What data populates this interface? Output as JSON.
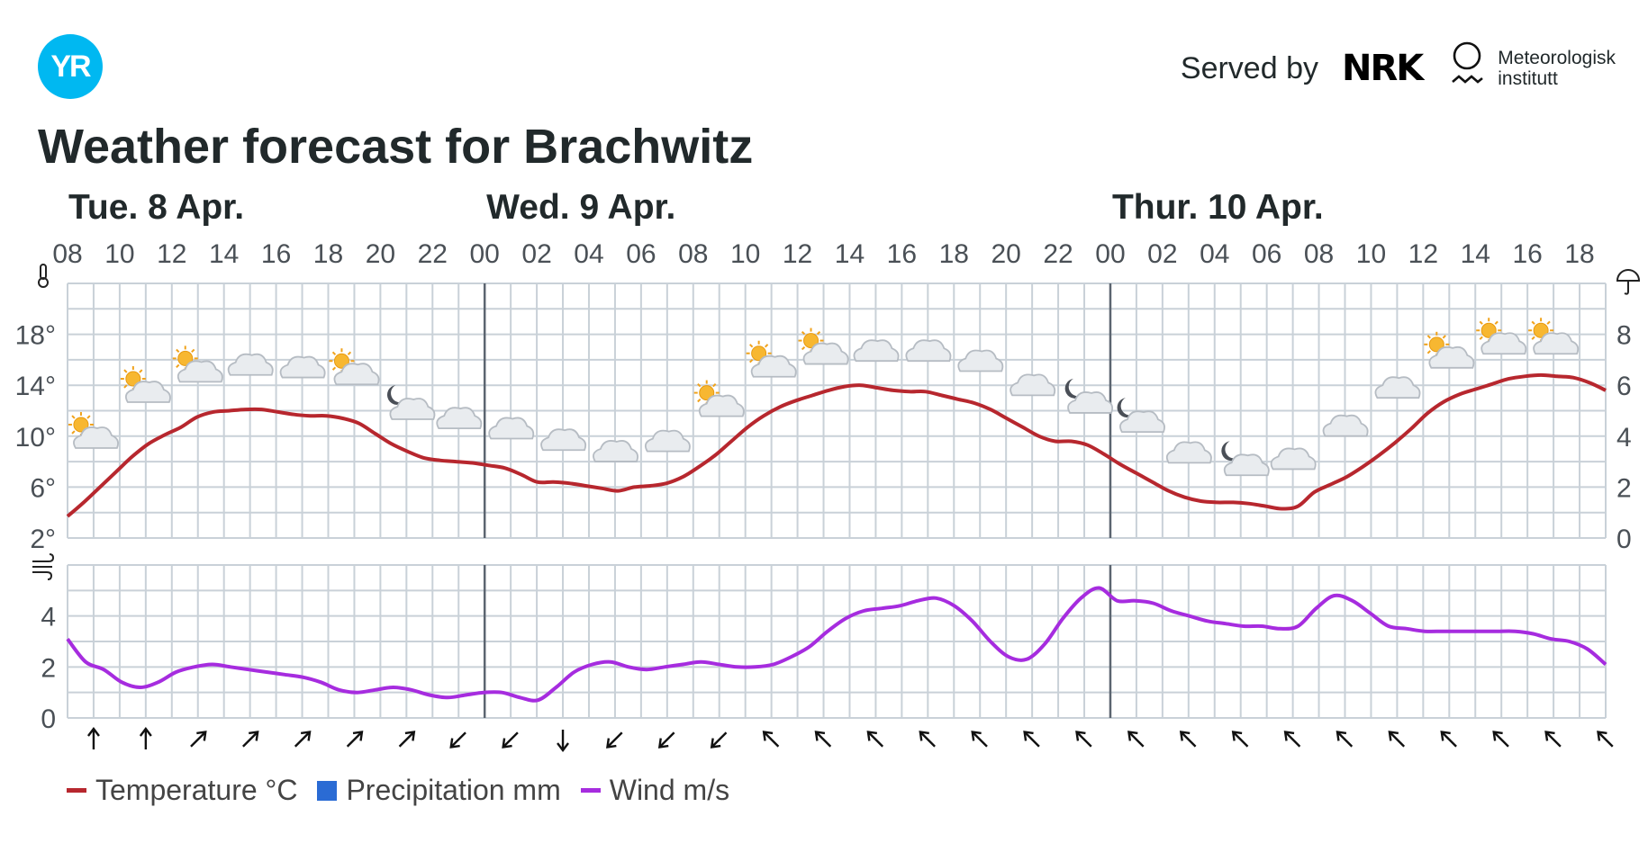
{
  "header": {
    "logo_text": "YR",
    "served_by": "Served by",
    "nrk_text": "NRK",
    "met_text": "Meteorologisk\ninstitutt"
  },
  "title": "Weather forecast for Brachwitz",
  "colors": {
    "temperature": "#b7272e",
    "wind": "#a62cdf",
    "precipitation": "#2a6bd4",
    "grid": "#c9d1d8",
    "day_divider": "#5c6570",
    "logo": "#00b8f1"
  },
  "legend": [
    {
      "label": "Temperature °C",
      "color": "#b7272e",
      "type": "line"
    },
    {
      "label": "Precipitation mm",
      "color": "#2a6bd4",
      "type": "box"
    },
    {
      "label": "Wind m/s",
      "color": "#a62cdf",
      "type": "line"
    }
  ],
  "chart_data": {
    "type": "line",
    "days": [
      {
        "label": "Tue. 8 Apr.",
        "start_hour": 0
      },
      {
        "label": "Wed. 9 Apr.",
        "start_hour": 16
      },
      {
        "label": "Thur. 10 Apr.",
        "start_hour": 40
      }
    ],
    "hour_labels": [
      "08",
      "10",
      "12",
      "14",
      "16",
      "18",
      "20",
      "22",
      "00",
      "02",
      "04",
      "06",
      "08",
      "10",
      "12",
      "14",
      "16",
      "18",
      "20",
      "22",
      "00",
      "02",
      "04",
      "06",
      "08",
      "10",
      "12",
      "14",
      "16",
      "18"
    ],
    "hours_covered": 59,
    "temperature": {
      "name": "Temperature °C",
      "yticks": [
        "18°",
        "14°",
        "10°",
        "6°",
        "2°"
      ],
      "ylim": [
        2,
        22
      ],
      "values": [
        3.7,
        4.8,
        6.0,
        7.2,
        8.4,
        9.4,
        10.1,
        10.7,
        11.5,
        11.9,
        12.0,
        12.1,
        12.1,
        11.9,
        11.7,
        11.6,
        11.6,
        11.4,
        11.0,
        10.2,
        9.4,
        8.8,
        8.3,
        8.1,
        8.0,
        7.9,
        7.7,
        7.5,
        7.0,
        6.4,
        6.4,
        6.3,
        6.1,
        5.9,
        5.7,
        6.0,
        6.1,
        6.3,
        6.8,
        7.6,
        8.5,
        9.6,
        10.7,
        11.6,
        12.3,
        12.8,
        13.2,
        13.6,
        13.9,
        14.0,
        13.8,
        13.6,
        13.5,
        13.5,
        13.2,
        12.9,
        12.6,
        12.1,
        11.4,
        10.7,
        10.0,
        9.6,
        9.6,
        9.3,
        8.6,
        7.8,
        7.1,
        6.4,
        5.7,
        5.2,
        4.9,
        4.8,
        4.8,
        4.7,
        4.5,
        4.3,
        4.5,
        5.6,
        6.2,
        6.8,
        7.6,
        8.5,
        9.5,
        10.6,
        11.8,
        12.7,
        13.3,
        13.7,
        14.1,
        14.5,
        14.7,
        14.8,
        14.7,
        14.6,
        14.2,
        13.6
      ]
    },
    "precipitation": {
      "name": "Precipitation mm",
      "yticks": [
        "8",
        "6",
        "4",
        "2",
        "0"
      ],
      "ylim": [
        0,
        10
      ],
      "values": []
    },
    "wind": {
      "name": "Wind m/s",
      "yticks": [
        "4",
        "2",
        "0"
      ],
      "ylim": [
        0,
        6
      ],
      "values": [
        3.1,
        2.2,
        1.9,
        1.4,
        1.2,
        1.4,
        1.8,
        2.0,
        2.1,
        2.0,
        1.9,
        1.8,
        1.7,
        1.6,
        1.4,
        1.1,
        1.0,
        1.1,
        1.2,
        1.1,
        0.9,
        0.8,
        0.9,
        1.0,
        1.0,
        0.8,
        0.7,
        1.2,
        1.8,
        2.1,
        2.2,
        2.0,
        1.9,
        2.0,
        2.1,
        2.2,
        2.1,
        2.0,
        2.0,
        2.1,
        2.4,
        2.8,
        3.4,
        3.9,
        4.2,
        4.3,
        4.4,
        4.6,
        4.7,
        4.4,
        3.8,
        3.0,
        2.4,
        2.3,
        2.9,
        3.9,
        4.7,
        5.1,
        4.6,
        4.6,
        4.5,
        4.2,
        4.0,
        3.8,
        3.7,
        3.6,
        3.6,
        3.5,
        3.6,
        4.3,
        4.8,
        4.6,
        4.1,
        3.6,
        3.5,
        3.4,
        3.4,
        3.4,
        3.4,
        3.4,
        3.4,
        3.3,
        3.1,
        3.0,
        2.7,
        2.1
      ]
    },
    "wind_directions": [
      "S",
      "S",
      "SW",
      "SW",
      "SW",
      "SW",
      "SW",
      "NE",
      "NE",
      "N",
      "NE",
      "NE",
      "NE",
      "SE",
      "SE",
      "SE",
      "SE",
      "SE",
      "SE",
      "SE",
      "SE",
      "SE",
      "SE",
      "SE",
      "SE",
      "SE",
      "SE",
      "SE",
      "SE",
      "SE"
    ],
    "weather_icons": [
      {
        "hour": 1,
        "symbol": "partly-cloudy-day",
        "temp_level": 10.2
      },
      {
        "hour": 3,
        "symbol": "partly-cloudy-day",
        "temp_level": 13.8
      },
      {
        "hour": 5,
        "symbol": "partly-cloudy-day",
        "temp_level": 15.4
      },
      {
        "hour": 7,
        "symbol": "cloudy",
        "temp_level": 15.8
      },
      {
        "hour": 9,
        "symbol": "cloudy",
        "temp_level": 15.6
      },
      {
        "hour": 11,
        "symbol": "partly-cloudy-day",
        "temp_level": 15.2
      },
      {
        "hour": 13,
        "symbol": "partly-cloudy-night",
        "temp_level": 12.6
      },
      {
        "hour": 15,
        "symbol": "cloudy",
        "temp_level": 11.6
      },
      {
        "hour": 17,
        "symbol": "cloudy",
        "temp_level": 10.8
      },
      {
        "hour": 19,
        "symbol": "cloudy",
        "temp_level": 9.9
      },
      {
        "hour": 21,
        "symbol": "cloudy",
        "temp_level": 9.0
      },
      {
        "hour": 23,
        "symbol": "cloudy",
        "temp_level": 9.8
      },
      {
        "hour": 25,
        "symbol": "partly-cloudy-day",
        "temp_level": 12.7
      },
      {
        "hour": 27,
        "symbol": "partly-cloudy-day",
        "temp_level": 15.8
      },
      {
        "hour": 29,
        "symbol": "partly-cloudy-day",
        "temp_level": 16.8
      },
      {
        "hour": 31,
        "symbol": "cloudy",
        "temp_level": 16.9
      },
      {
        "hour": 33,
        "symbol": "cloudy",
        "temp_level": 16.9
      },
      {
        "hour": 35,
        "symbol": "cloudy",
        "temp_level": 16.1
      },
      {
        "hour": 37,
        "symbol": "cloudy",
        "temp_level": 14.2
      },
      {
        "hour": 39,
        "symbol": "partly-cloudy-night",
        "temp_level": 13.1
      },
      {
        "hour": 41,
        "symbol": "partly-cloudy-night",
        "temp_level": 11.6
      },
      {
        "hour": 43,
        "symbol": "cloudy",
        "temp_level": 8.9
      },
      {
        "hour": 45,
        "symbol": "partly-cloudy-night",
        "temp_level": 8.2
      },
      {
        "hour": 47,
        "symbol": "cloudy",
        "temp_level": 8.4
      },
      {
        "hour": 49,
        "symbol": "cloudy",
        "temp_level": 11.0
      },
      {
        "hour": 51,
        "symbol": "cloudy",
        "temp_level": 14.0
      },
      {
        "hour": 53,
        "symbol": "partly-cloudy-day",
        "temp_level": 16.5
      },
      {
        "hour": 55,
        "symbol": "partly-cloudy-day",
        "temp_level": 17.6
      },
      {
        "hour": 57,
        "symbol": "partly-cloudy-day",
        "temp_level": 17.6
      }
    ],
    "grid": true,
    "legend_position": "bottom-left"
  }
}
